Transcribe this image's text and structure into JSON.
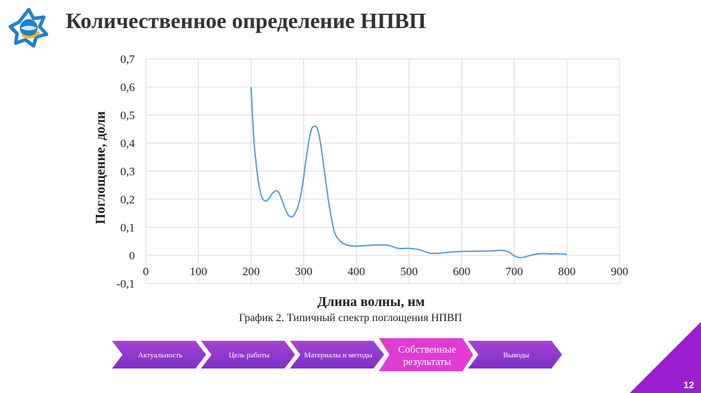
{
  "slide": {
    "title": "Количественное определение НПВП",
    "page_number": "12"
  },
  "chart_data": {
    "type": "line",
    "title": "",
    "caption": "График 2. Типичный спектр поглощения НПВП",
    "xlabel": "Длина волны, нм",
    "ylabel": "Поглощение, доли",
    "xlim": [
      0,
      900
    ],
    "ylim": [
      -0.1,
      0.7
    ],
    "x_ticks": [
      "0",
      "100",
      "200",
      "300",
      "400",
      "500",
      "600",
      "700",
      "800",
      "900"
    ],
    "y_ticks": [
      "-0,1",
      "0",
      "0,1",
      "0,2",
      "0,3",
      "0,4",
      "0,5",
      "0,6",
      "0,7"
    ],
    "grid": true,
    "line_color": "#5b9bd5",
    "series": [
      {
        "x": [
          200,
          205,
          210,
          215,
          220,
          225,
          230,
          235,
          240,
          245,
          250,
          255,
          260,
          265,
          270,
          275,
          280,
          285,
          290,
          295,
          300,
          305,
          310,
          315,
          320,
          325,
          330,
          335,
          340,
          345,
          350,
          355,
          360,
          370,
          380,
          390,
          400,
          420,
          440,
          460,
          480,
          500,
          520,
          540,
          560,
          580,
          600,
          620,
          640,
          660,
          670,
          680,
          690,
          700,
          710,
          720,
          730,
          740,
          750,
          760,
          770,
          780,
          790,
          800
        ],
        "y": [
          0.6,
          0.42,
          0.32,
          0.25,
          0.21,
          0.195,
          0.195,
          0.205,
          0.22,
          0.228,
          0.23,
          0.215,
          0.19,
          0.165,
          0.145,
          0.138,
          0.14,
          0.155,
          0.18,
          0.22,
          0.28,
          0.35,
          0.41,
          0.45,
          0.46,
          0.455,
          0.42,
          0.36,
          0.29,
          0.22,
          0.16,
          0.11,
          0.075,
          0.05,
          0.038,
          0.034,
          0.033,
          0.035,
          0.037,
          0.036,
          0.025,
          0.025,
          0.02,
          0.008,
          0.008,
          0.012,
          0.014,
          0.015,
          0.015,
          0.016,
          0.018,
          0.017,
          0.012,
          -0.002,
          -0.008,
          -0.006,
          0.0,
          0.004,
          0.006,
          0.006,
          0.005,
          0.006,
          0.005,
          0.004
        ]
      }
    ]
  },
  "nav_steps": [
    {
      "label": "Актуальность",
      "active": false
    },
    {
      "label": "Цель работы",
      "active": false
    },
    {
      "label": "Материалы и методы",
      "active": false
    },
    {
      "label": "Собственные результаты",
      "active": true
    },
    {
      "label": "Выводы",
      "active": false
    }
  ],
  "colors": {
    "nav_dark": "#7e2fc6",
    "nav_light": "#a344d8",
    "nav_active": "#e23bd3",
    "corner": "#9a1fd0",
    "logo_blue": "#1d80d0",
    "logo_gold": "#f2b21c"
  }
}
